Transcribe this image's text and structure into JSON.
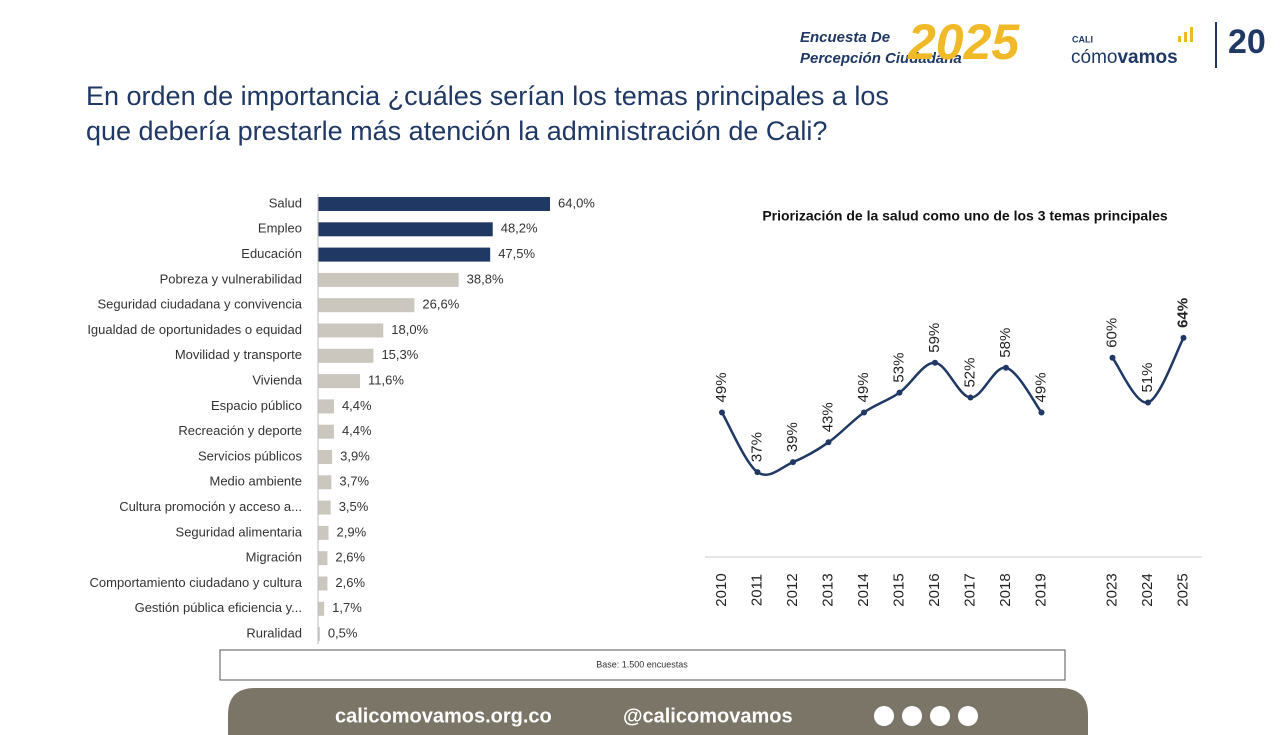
{
  "header": {
    "title_line1": "En orden de importancia ¿cuáles serían los temas principales a los",
    "title_line2": "que debería prestarle más atención la administración de Cali?",
    "logo": {
      "survey_line1": "Encuesta De",
      "survey_line2": "Percepción Ciudadana",
      "year": "2025",
      "cali": "CALI",
      "como": "cómo",
      "vamos": "vamos",
      "anniversary": "20"
    }
  },
  "chart_data": [
    {
      "type": "bar",
      "orientation": "horizontal",
      "categories": [
        "Salud",
        "Empleo",
        "Educación",
        "Pobreza y vulnerabilidad",
        "Seguridad ciudadana y convivencia",
        "Igualdad de oportunidades  o equidad",
        "Movilidad y transporte",
        "Vivienda",
        "Espacio público",
        "Recreación y deporte",
        "Servicios públicos",
        "Medio ambiente",
        "Cultura  promoción y acceso a...",
        "Seguridad alimentaria",
        "Migración",
        "Comportamiento ciudadano y cultura",
        "Gestión pública  eficiencia y...",
        "Ruralidad"
      ],
      "values": [
        64.0,
        48.2,
        47.5,
        38.8,
        26.6,
        18.0,
        15.3,
        11.6,
        4.4,
        4.4,
        3.9,
        3.7,
        3.5,
        2.9,
        2.6,
        2.6,
        1.7,
        0.5
      ],
      "value_labels": [
        "64,0%",
        "48,2%",
        "47,5%",
        "38,8%",
        "26,6%",
        "18,0%",
        "15,3%",
        "11,6%",
        "4,4%",
        "4,4%",
        "3,9%",
        "3,7%",
        "3,5%",
        "2,9%",
        "2,6%",
        "2,6%",
        "1,7%",
        "0,5%"
      ],
      "colors": [
        "#1f3864",
        "#1f3864",
        "#1f3864",
        "#cbc7bf",
        "#cbc7bf",
        "#cbc7bf",
        "#cbc7bf",
        "#cbc7bf",
        "#cbc7bf",
        "#cbc7bf",
        "#cbc7bf",
        "#cbc7bf",
        "#cbc7bf",
        "#cbc7bf",
        "#cbc7bf",
        "#cbc7bf",
        "#cbc7bf",
        "#cbc7bf"
      ]
    },
    {
      "type": "line",
      "title": "Priorización de la salud como uno de los 3 temas principales",
      "categories": [
        "2010",
        "2011",
        "2012",
        "2013",
        "2014",
        "2015",
        "2016",
        "2017",
        "2018",
        "2019",
        null,
        "2023",
        "2024",
        "2025"
      ],
      "values": [
        49,
        37,
        39,
        43,
        49,
        53,
        59,
        52,
        58,
        49,
        null,
        60,
        51,
        64
      ],
      "value_labels": [
        "49%",
        "37%",
        "39%",
        "43%",
        "49%",
        "53%",
        "59%",
        "52%",
        "58%",
        "49%",
        null,
        "60%",
        "51%",
        "64%"
      ],
      "color": "#1f3864"
    }
  ],
  "base_note": "Base: 1.500 encuestas",
  "footer": {
    "website": "calicomovamos.org.co",
    "handle": "@calicomovamos"
  }
}
